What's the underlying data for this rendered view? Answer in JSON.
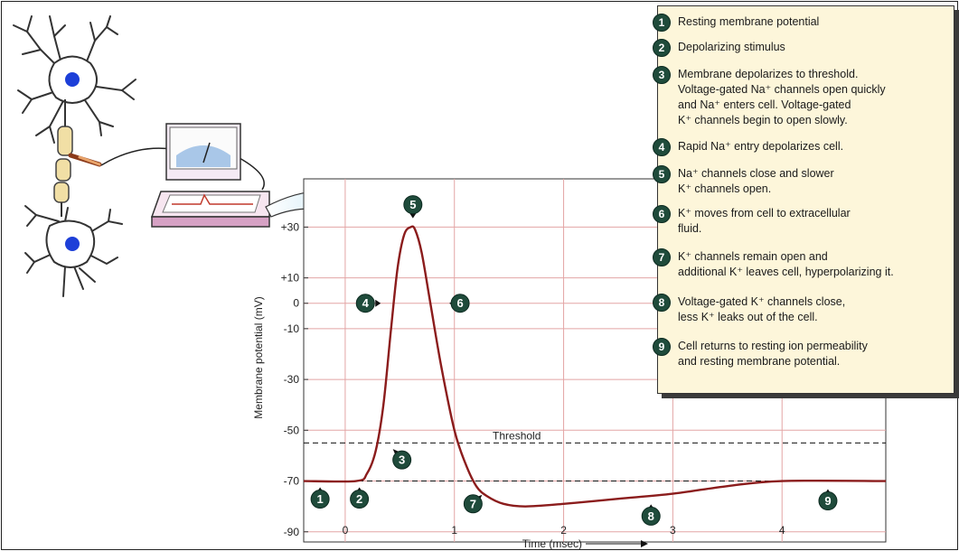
{
  "chart_data": {
    "type": "line",
    "xlabel": "Time (msec)",
    "ylabel": "Membrane potential (mV)",
    "xlim": [
      -0.38,
      4.95
    ],
    "ylim": [
      -94,
      49
    ],
    "x_ticks": [
      {
        "value": 0,
        "label": "0"
      },
      {
        "value": 1,
        "label": "1"
      },
      {
        "value": 2,
        "label": "2"
      },
      {
        "value": 3,
        "label": "3"
      },
      {
        "value": 4,
        "label": "4"
      }
    ],
    "y_ticks": [
      {
        "value": 30,
        "label": "+30"
      },
      {
        "value": 10,
        "label": "+10"
      },
      {
        "value": 0,
        "label": "0"
      },
      {
        "value": -10,
        "label": "-10"
      },
      {
        "value": -30,
        "label": "-30"
      },
      {
        "value": -50,
        "label": "-50"
      },
      {
        "value": -70,
        "label": "-70"
      },
      {
        "value": -90,
        "label": "-90"
      }
    ],
    "grid": true,
    "threshold": {
      "value": -55,
      "label": "Threshold"
    },
    "series": [
      {
        "x": [
          -0.38,
          0.1,
          0.2,
          0.28,
          0.35,
          0.42,
          0.48,
          0.54,
          0.6,
          0.64,
          0.7,
          0.78,
          0.88,
          1.0,
          1.1,
          1.2,
          1.3,
          1.45,
          1.65,
          2.0,
          2.5,
          3.0,
          3.5,
          4.0,
          4.95
        ],
        "y": [
          -70,
          -70,
          -67,
          -58,
          -40,
          -10,
          14,
          27,
          30,
          29,
          20,
          0,
          -25,
          -50,
          -63,
          -72,
          -76,
          -79,
          -80,
          -79,
          -77,
          -75,
          -72,
          -70,
          -70
        ]
      }
    ],
    "annotations": [
      {
        "num": "1",
        "x": -0.23,
        "y": -70
      },
      {
        "num": "2",
        "x": 0.13,
        "y": -70
      },
      {
        "num": "3",
        "x": 0.42,
        "y": -56
      },
      {
        "num": "4",
        "x": 0.4,
        "y": 0
      },
      {
        "num": "5",
        "x": 0.62,
        "y": 31
      },
      {
        "num": "6",
        "x": 0.92,
        "y": 0
      },
      {
        "num": "7",
        "x": 1.27,
        "y": -74
      },
      {
        "num": "8",
        "x": 2.8,
        "y": -76
      },
      {
        "num": "9",
        "x": 4.42,
        "y": -70
      }
    ]
  },
  "legend": [
    {
      "num": "1",
      "text": "Resting membrane potential"
    },
    {
      "num": "2",
      "text": "Depolarizing stimulus"
    },
    {
      "num": "3",
      "text": "Membrane depolarizes to threshold.\nVoltage-gated Na⁺ channels open quickly\nand Na⁺ enters cell. Voltage-gated\nK⁺ channels begin to open slowly."
    },
    {
      "num": "4",
      "text": "Rapid Na⁺ entry depolarizes cell."
    },
    {
      "num": "5",
      "text": "Na⁺ channels close and slower\nK⁺ channels open."
    },
    {
      "num": "6",
      "text": "K⁺ moves from cell to extracellular\nfluid."
    },
    {
      "num": "7",
      "text": "K⁺ channels remain open and\nadditional K⁺ leaves cell, hyperpolarizing it."
    },
    {
      "num": "8",
      "text": "Voltage-gated K⁺ channels close,\nless K⁺ leaks out of the cell."
    },
    {
      "num": "9",
      "text": "Cell returns to resting ion permeability\nand resting membrane potential."
    }
  ],
  "colors": {
    "trace": "#8b1c1c",
    "grid": "#e3a5a5",
    "badge": "#1f4b3b",
    "legend_bg": "#fdf6da",
    "arrow": "#cfe9f5"
  }
}
